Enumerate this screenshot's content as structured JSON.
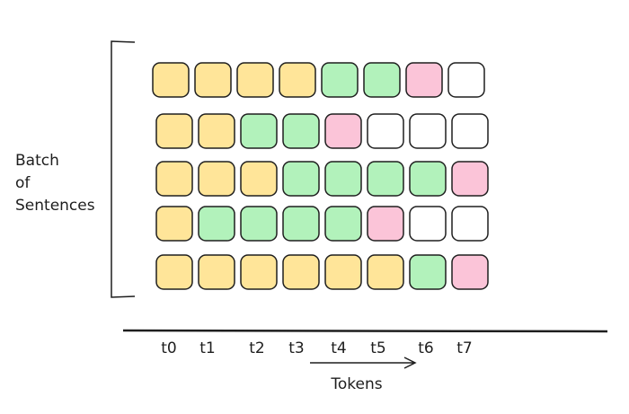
{
  "label": {
    "lines": [
      "Batch",
      "of",
      "Sentences"
    ]
  },
  "tokens": [
    "t0",
    "t1",
    "t2",
    "t3",
    "t4",
    "t5",
    "t6",
    "t7"
  ],
  "axis_label": "Tokens",
  "palette": {
    "Y": "#ffe599",
    "G": "#b2f2bb",
    "P": "#fbc4d8",
    "W": "#ffffff"
  },
  "rows": [
    [
      "Y",
      "Y",
      "Y",
      "Y",
      "G",
      "G",
      "P",
      "W"
    ],
    [
      "Y",
      "Y",
      "G",
      "G",
      "P",
      "W",
      "W",
      "W"
    ],
    [
      "Y",
      "Y",
      "Y",
      "G",
      "G",
      "G",
      "G",
      "P"
    ],
    [
      "Y",
      "G",
      "G",
      "G",
      "G",
      "P",
      "W",
      "W"
    ],
    [
      "Y",
      "Y",
      "Y",
      "Y",
      "Y",
      "Y",
      "G",
      "P"
    ]
  ]
}
